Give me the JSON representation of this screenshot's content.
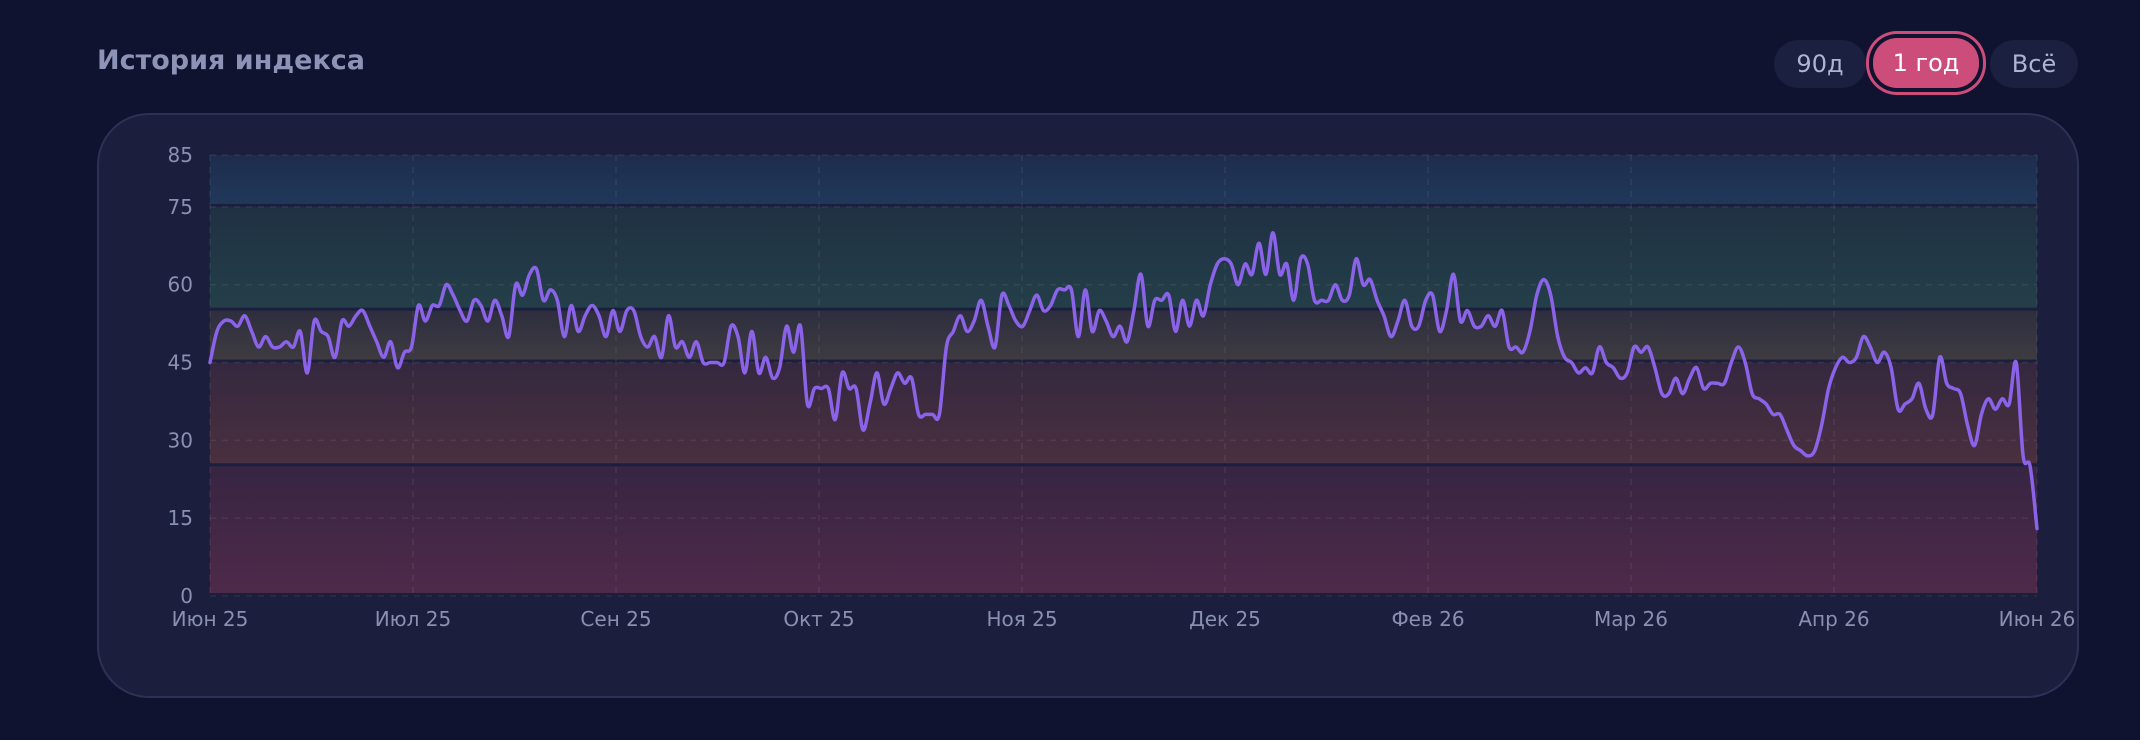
{
  "header": {
    "title": "История индекса"
  },
  "ranges": [
    {
      "label": "90д",
      "active": false
    },
    {
      "label": "1 год",
      "active": true
    },
    {
      "label": "Всё",
      "active": false
    }
  ],
  "colors": {
    "line": "#8b63e9",
    "accent": "#cc4d7a",
    "background": "#10132f",
    "card": "#1b1f3d"
  },
  "chart_data": {
    "type": "line",
    "title": "",
    "xlabel": "",
    "ylabel": "",
    "ylim": [
      0,
      85
    ],
    "yticks": [
      0,
      15,
      30,
      45,
      60,
      75,
      85
    ],
    "grid": true,
    "legend": "none",
    "x_ticks": [
      "Июн 25",
      "Июл 25",
      "Сен 25",
      "Окт 25",
      "Ноя 25",
      "Дек 25",
      "Фев 26",
      "Мар 26",
      "Апр 26",
      "Июн 26"
    ],
    "zones": [
      {
        "from": 0,
        "to": 25,
        "color": "#e0486a"
      },
      {
        "from": 25,
        "to": 45,
        "color": "#d06048"
      },
      {
        "from": 45,
        "to": 55,
        "color": "#a08a4a"
      },
      {
        "from": 55,
        "to": 75,
        "color": "#3c9a6a"
      },
      {
        "from": 75,
        "to": 85,
        "color": "#2f7fae"
      }
    ],
    "series": [
      {
        "values": [
          45,
          51,
          53,
          53,
          52,
          54,
          51,
          48,
          50,
          48,
          48,
          49,
          48,
          51,
          43,
          53,
          51,
          50,
          46,
          53,
          52,
          54,
          55,
          52,
          49,
          46,
          49,
          44,
          47,
          48,
          56,
          53,
          56,
          56,
          60,
          58,
          55,
          53,
          57,
          56,
          53,
          57,
          54,
          50,
          60,
          58,
          62,
          63,
          57,
          59,
          57,
          50,
          56,
          51,
          54,
          56,
          54,
          50,
          55,
          51,
          55,
          55,
          50,
          48,
          50,
          46,
          54,
          48,
          49,
          46,
          49,
          45,
          45,
          45,
          45,
          52,
          50,
          43,
          51,
          43,
          46,
          42,
          44,
          52,
          47,
          52,
          37,
          40,
          40,
          40,
          34,
          43,
          40,
          40,
          32,
          37,
          43,
          37,
          40,
          43,
          41,
          42,
          35,
          35,
          35,
          35,
          48,
          51,
          54,
          51,
          53,
          57,
          52,
          48,
          58,
          56,
          53,
          52,
          55,
          58,
          55,
          56,
          59,
          59,
          59,
          50,
          59,
          51,
          55,
          53,
          50,
          52,
          49,
          55,
          62,
          52,
          57,
          57,
          58,
          51,
          57,
          52,
          57,
          54,
          60,
          64,
          65,
          64,
          60,
          64,
          62,
          68,
          62,
          70,
          62,
          64,
          57,
          65,
          64,
          57,
          57,
          57,
          60,
          57,
          58,
          65,
          60,
          61,
          57,
          54,
          50,
          53,
          57,
          52,
          52,
          57,
          58,
          51,
          55,
          62,
          53,
          55,
          52,
          52,
          54,
          52,
          55,
          48,
          48,
          47,
          51,
          58,
          61,
          58,
          50,
          46,
          45,
          43,
          44,
          43,
          48,
          45,
          44,
          42,
          43,
          48,
          47,
          48,
          44,
          39,
          39,
          42,
          39,
          42,
          44,
          40,
          41,
          41,
          41,
          45,
          48,
          45,
          39,
          38,
          37,
          35,
          35,
          32,
          29,
          28,
          27,
          28,
          33,
          40,
          44,
          46,
          45,
          46,
          50,
          48,
          45,
          47,
          44,
          36,
          37,
          38,
          41,
          36,
          35,
          46,
          41,
          40,
          39,
          33,
          29,
          35,
          38,
          36,
          38,
          37,
          45,
          27,
          25,
          13
        ]
      }
    ]
  }
}
